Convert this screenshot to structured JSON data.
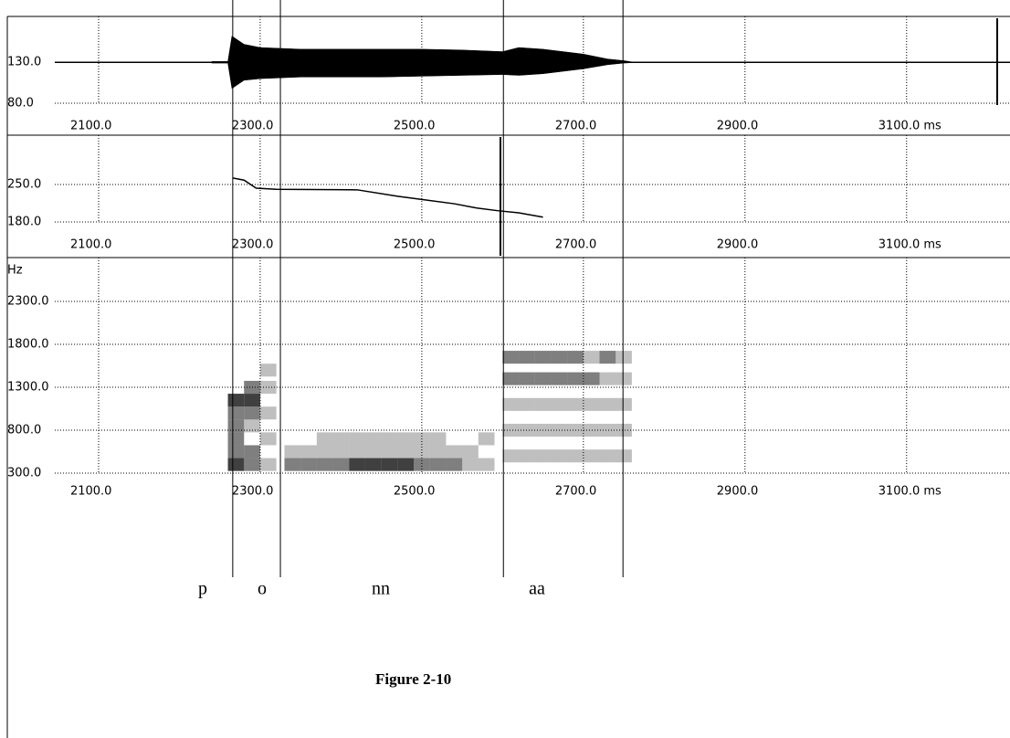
{
  "chart_data": [
    {
      "type": "waveform",
      "xlim": [
        1987,
        3228
      ],
      "xticks": [
        {
          "value": 2100,
          "label": "2100.0"
        },
        {
          "value": 2300,
          "label": "2300.0"
        },
        {
          "value": 2500,
          "label": "2500.0"
        },
        {
          "value": 2700,
          "label": "2700.0"
        },
        {
          "value": 2900,
          "label": "2900.0"
        },
        {
          "value": 3100,
          "label": "3100.0 ms"
        }
      ],
      "ylim": [
        80,
        186
      ],
      "yticks": [
        {
          "value": 130,
          "label": "130.0"
        },
        {
          "value": 80,
          "label": "80.0"
        }
      ],
      "grid": true,
      "x": [
        2240,
        2260,
        2265,
        2280,
        2300,
        2350,
        2400,
        2450,
        2500,
        2550,
        2600,
        2620,
        2650,
        2700,
        2730,
        2750,
        2760
      ],
      "series": [
        {
          "color": "#000000",
          "values": [
            131,
            131,
            162,
            152,
            148,
            146,
            146,
            146,
            146,
            145,
            143,
            148,
            146,
            140,
            134,
            132,
            130.5
          ]
        },
        {
          "color": "#000000",
          "values": [
            129,
            129,
            98,
            108,
            110,
            112,
            112,
            112,
            113,
            114,
            115,
            114,
            116,
            122,
            127,
            129,
            129.5
          ]
        }
      ]
    },
    {
      "type": "line",
      "xlim": [
        1987,
        3228
      ],
      "xticks": [
        {
          "value": 2100,
          "label": "2100.0"
        },
        {
          "value": 2300,
          "label": "2300.0"
        },
        {
          "value": 2500,
          "label": "2500.0"
        },
        {
          "value": 2700,
          "label": "2700.0"
        },
        {
          "value": 2900,
          "label": "2900.0"
        },
        {
          "value": 3100,
          "label": "3100.0 ms"
        }
      ],
      "ylim": [
        180,
        342
      ],
      "yticks": [
        {
          "value": 250,
          "label": "250.0"
        },
        {
          "value": 180,
          "label": "180.0"
        }
      ],
      "grid": true,
      "x": [
        2266,
        2280,
        2295,
        2320,
        2420,
        2470,
        2500,
        2540,
        2568,
        2594,
        2620,
        2650
      ],
      "series": [
        {
          "color": "#000000",
          "values": [
            262,
            258,
            243,
            241,
            240,
            228,
            222,
            214,
            206,
            201,
            197,
            189
          ]
        }
      ]
    },
    {
      "type": "spectrogram",
      "ylabel": "Hz",
      "xlim": [
        1987,
        3228
      ],
      "xticks": [
        {
          "value": 2100,
          "label": "2100.0"
        },
        {
          "value": 2300,
          "label": "2300.0"
        },
        {
          "value": 2500,
          "label": "2500.0"
        },
        {
          "value": 2700,
          "label": "2700.0"
        },
        {
          "value": 2900,
          "label": "2900.0"
        },
        {
          "value": 3100,
          "label": "3100.0 ms"
        }
      ],
      "ylim": [
        300,
        2811
      ],
      "yticks": [
        {
          "value": 2300,
          "label": "2300.0"
        },
        {
          "value": 1800,
          "label": "1800.0"
        },
        {
          "value": 1300,
          "label": "1300.0"
        },
        {
          "value": 800,
          "label": "800.0"
        },
        {
          "value": 300,
          "label": "300.0"
        }
      ],
      "grid": true,
      "x": [
        2270,
        2270,
        2270,
        2270,
        2270,
        2270,
        2290,
        2290,
        2290,
        2290,
        2290,
        2290,
        2310,
        2310,
        2310,
        2310,
        2310,
        2340,
        2340,
        2360,
        2360,
        2380,
        2380,
        2400,
        2400,
        2420,
        2420,
        2440,
        2440,
        2460,
        2460,
        2480,
        2480,
        2500,
        2500,
        2520,
        2520,
        2540,
        2540,
        2560,
        2560,
        2380,
        2400,
        2420,
        2440,
        2460,
        2480,
        2500,
        2520,
        2580,
        2580,
        2610,
        2610,
        2610,
        2610,
        2610,
        2630,
        2630,
        2630,
        2630,
        2630,
        2650,
        2650,
        2650,
        2650,
        2650,
        2670,
        2670,
        2670,
        2670,
        2670,
        2690,
        2690,
        2690,
        2690,
        2690,
        2710,
        2710,
        2710,
        2710,
        2710,
        2730,
        2730,
        2730,
        2730,
        2730,
        2750,
        2750,
        2750,
        2750,
        2750
      ],
      "y": [
        400,
        550,
        700,
        850,
        1000,
        1150,
        400,
        550,
        850,
        1000,
        1150,
        1300,
        400,
        700,
        1000,
        1300,
        1500,
        400,
        550,
        400,
        550,
        400,
        550,
        400,
        550,
        400,
        550,
        400,
        550,
        400,
        550,
        400,
        550,
        400,
        550,
        400,
        550,
        400,
        550,
        400,
        550,
        700,
        700,
        700,
        700,
        700,
        700,
        700,
        700,
        400,
        700,
        500,
        800,
        1100,
        1400,
        1650,
        500,
        800,
        1100,
        1400,
        1650,
        500,
        800,
        1100,
        1400,
        1650,
        500,
        800,
        1100,
        1400,
        1650,
        500,
        800,
        1100,
        1400,
        1650,
        500,
        800,
        1100,
        1400,
        1650,
        500,
        800,
        1100,
        1400,
        1650,
        500,
        800,
        1100,
        1400,
        1650
      ],
      "values": [
        3,
        2,
        2,
        2,
        2,
        3,
        2,
        2,
        1,
        2,
        3,
        2,
        1,
        1,
        1,
        1,
        1,
        2,
        1,
        2,
        1,
        2,
        1,
        2,
        1,
        3,
        1,
        3,
        1,
        3,
        1,
        3,
        1,
        2,
        1,
        2,
        1,
        2,
        1,
        1,
        1,
        1,
        1,
        1,
        1,
        1,
        1,
        1,
        1,
        1,
        1,
        1,
        1,
        1,
        2,
        2,
        1,
        1,
        1,
        2,
        2,
        1,
        1,
        1,
        2,
        2,
        1,
        1,
        1,
        2,
        2,
        1,
        1,
        1,
        2,
        2,
        1,
        1,
        1,
        2,
        1,
        1,
        1,
        1,
        1,
        2,
        1,
        1,
        1,
        1,
        1
      ]
    }
  ],
  "segments": {
    "boundaries": [
      2266,
      2325,
      2601,
      2749
    ],
    "labels": [
      "p",
      "o",
      "nn",
      "aa"
    ]
  },
  "caption": "Figure 2-10"
}
